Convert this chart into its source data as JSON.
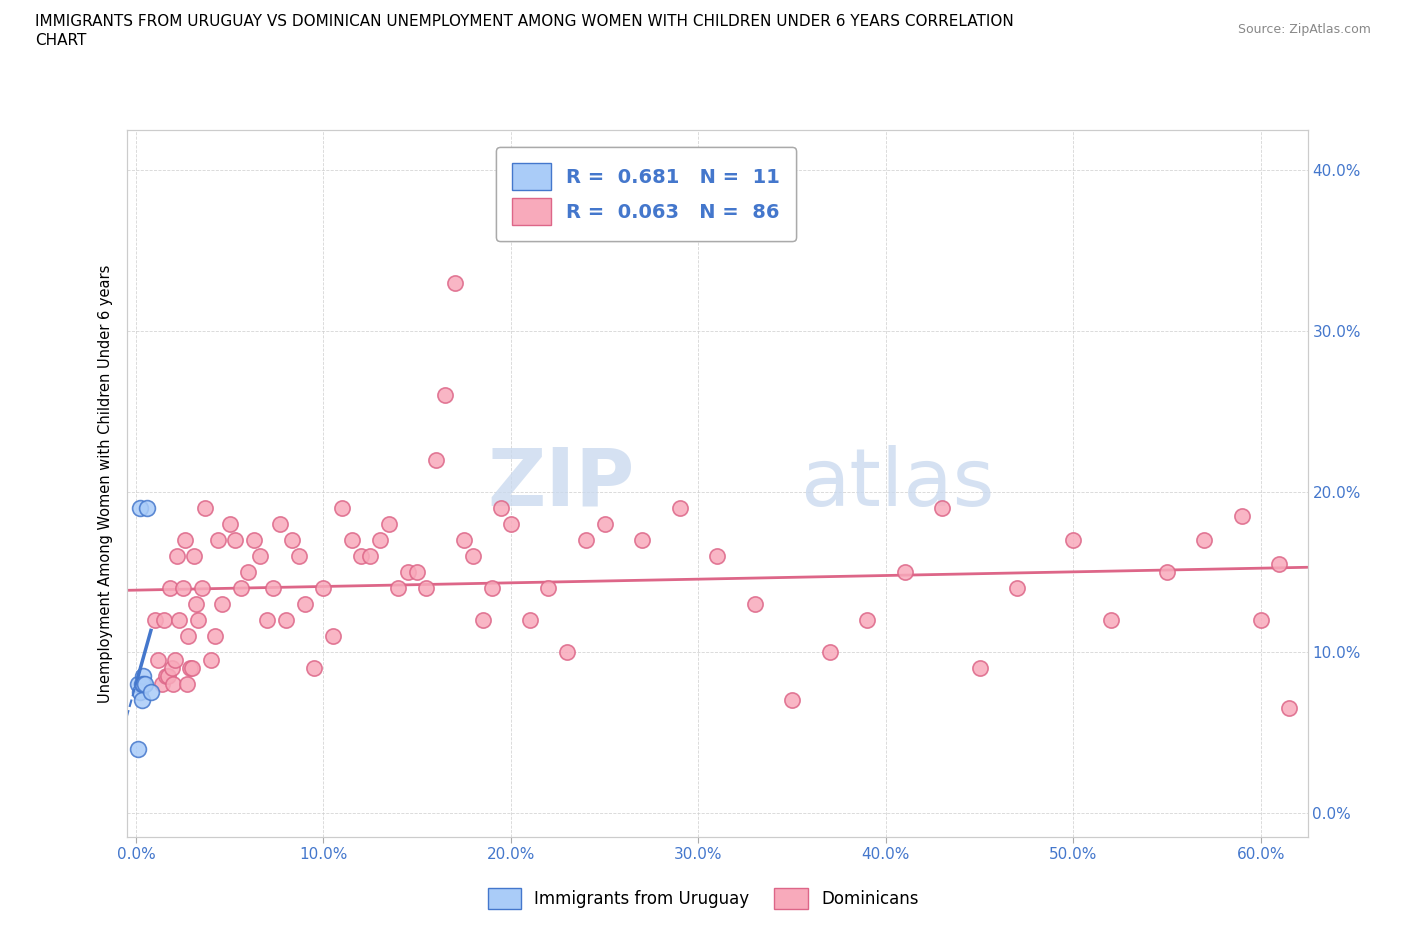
{
  "title_line1": "IMMIGRANTS FROM URUGUAY VS DOMINICAN UNEMPLOYMENT AMONG WOMEN WITH CHILDREN UNDER 6 YEARS CORRELATION",
  "title_line2": "CHART",
  "source": "Source: ZipAtlas.com",
  "ylabel": "Unemployment Among Women with Children Under 6 years",
  "xlim": [
    -0.005,
    0.625
  ],
  "ylim": [
    -0.015,
    0.425
  ],
  "xticks": [
    0.0,
    0.1,
    0.2,
    0.3,
    0.4,
    0.5,
    0.6
  ],
  "yticks": [
    0.0,
    0.1,
    0.2,
    0.3,
    0.4
  ],
  "R_uruguay": 0.681,
  "N_uruguay": 11,
  "R_dominican": 0.063,
  "N_dominican": 86,
  "color_uruguay": "#aaccf8",
  "color_dominican": "#f8aabb",
  "color_trendline_uruguay": "#4477cc",
  "color_trendline_dominican": "#dd6688",
  "color_text_blue": "#4477cc",
  "watermark_zip": "ZIP",
  "watermark_atlas": "atlas",
  "uruguay_x": [
    0.001,
    0.001,
    0.002,
    0.002,
    0.003,
    0.003,
    0.004,
    0.004,
    0.005,
    0.006,
    0.008
  ],
  "uruguay_y": [
    0.04,
    0.08,
    0.19,
    0.075,
    0.08,
    0.07,
    0.085,
    0.08,
    0.08,
    0.19,
    0.075
  ],
  "dominican_x": [
    0.01,
    0.012,
    0.014,
    0.015,
    0.016,
    0.017,
    0.018,
    0.019,
    0.02,
    0.021,
    0.022,
    0.023,
    0.025,
    0.026,
    0.027,
    0.028,
    0.029,
    0.03,
    0.031,
    0.032,
    0.033,
    0.035,
    0.037,
    0.04,
    0.042,
    0.044,
    0.046,
    0.05,
    0.053,
    0.056,
    0.06,
    0.063,
    0.066,
    0.07,
    0.073,
    0.077,
    0.08,
    0.083,
    0.087,
    0.09,
    0.095,
    0.1,
    0.105,
    0.11,
    0.115,
    0.12,
    0.125,
    0.13,
    0.135,
    0.14,
    0.145,
    0.15,
    0.155,
    0.16,
    0.165,
    0.17,
    0.175,
    0.18,
    0.185,
    0.19,
    0.195,
    0.2,
    0.21,
    0.22,
    0.23,
    0.24,
    0.25,
    0.27,
    0.29,
    0.31,
    0.33,
    0.35,
    0.37,
    0.39,
    0.41,
    0.43,
    0.45,
    0.47,
    0.5,
    0.52,
    0.55,
    0.57,
    0.59,
    0.6,
    0.61,
    0.615
  ],
  "dominican_y": [
    0.12,
    0.095,
    0.08,
    0.12,
    0.085,
    0.085,
    0.14,
    0.09,
    0.08,
    0.095,
    0.16,
    0.12,
    0.14,
    0.17,
    0.08,
    0.11,
    0.09,
    0.09,
    0.16,
    0.13,
    0.12,
    0.14,
    0.19,
    0.095,
    0.11,
    0.17,
    0.13,
    0.18,
    0.17,
    0.14,
    0.15,
    0.17,
    0.16,
    0.12,
    0.14,
    0.18,
    0.12,
    0.17,
    0.16,
    0.13,
    0.09,
    0.14,
    0.11,
    0.19,
    0.17,
    0.16,
    0.16,
    0.17,
    0.18,
    0.14,
    0.15,
    0.15,
    0.14,
    0.22,
    0.26,
    0.33,
    0.17,
    0.16,
    0.12,
    0.14,
    0.19,
    0.18,
    0.12,
    0.14,
    0.1,
    0.17,
    0.18,
    0.17,
    0.19,
    0.16,
    0.13,
    0.07,
    0.1,
    0.12,
    0.15,
    0.19,
    0.09,
    0.14,
    0.17,
    0.12,
    0.15,
    0.17,
    0.185,
    0.12,
    0.155,
    0.065
  ]
}
